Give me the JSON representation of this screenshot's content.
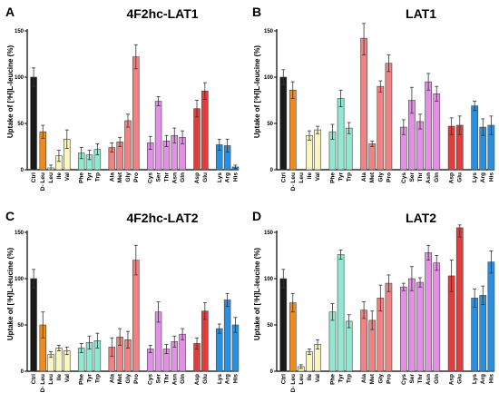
{
  "chart_data": [
    {
      "panel": "A",
      "type": "bar",
      "title": "4F2hc-LAT1",
      "ylabel": "Uptake of [³H]L-leucine (%)",
      "ylim": [
        0,
        150
      ],
      "yticks": [
        0,
        50,
        100,
        150
      ],
      "categories": [
        "Ctrl",
        "D- Leu",
        "Leu",
        "Ile",
        "Val",
        "Phe",
        "Tyr",
        "Trp",
        "Ala",
        "Met",
        "Gly",
        "Pro",
        "Cys",
        "Ser",
        "Thr",
        "Asn",
        "Gln",
        "Asp",
        "Glu",
        "Lys",
        "Arg",
        "His"
      ],
      "values": [
        100,
        41,
        2,
        15,
        33,
        18,
        16,
        22,
        24,
        30,
        53,
        122,
        29,
        74,
        31,
        37,
        35,
        66,
        85,
        27,
        26,
        3
      ],
      "errors": [
        10,
        7,
        3,
        6,
        10,
        6,
        5,
        6,
        5,
        5,
        7,
        13,
        7,
        5,
        6,
        8,
        7,
        9,
        9,
        6,
        7,
        2
      ]
    },
    {
      "panel": "B",
      "type": "bar",
      "title": "LAT1",
      "ylabel": "Uptake of [³H]L-leucine (%)",
      "ylim": [
        0,
        150
      ],
      "yticks": [
        0,
        50,
        100,
        150
      ],
      "categories": [
        "Ctrl",
        "D- Leu",
        "Leu",
        "Ile",
        "Val",
        "Phe",
        "Tyr",
        "Trp",
        "Ala",
        "Met",
        "Gly",
        "Pro",
        "Cys",
        "Ser",
        "Thr",
        "Asn",
        "Gln",
        "Asp",
        "Glu",
        "Lys",
        "Arg",
        "His"
      ],
      "values": [
        100,
        86,
        0,
        37,
        43,
        41,
        77,
        45,
        142,
        28,
        90,
        115,
        46,
        75,
        52,
        95,
        82,
        47,
        48,
        69,
        46,
        48
      ],
      "errors": [
        8,
        9,
        0,
        5,
        4,
        8,
        9,
        6,
        18,
        3,
        6,
        9,
        8,
        14,
        8,
        9,
        8,
        9,
        10,
        5,
        9,
        10
      ]
    },
    {
      "panel": "C",
      "type": "bar",
      "title": "4F2hc-LAT2",
      "ylabel": "Uptake of [³H]L-leucine (%)",
      "ylim": [
        0,
        150
      ],
      "yticks": [
        0,
        50,
        100,
        150
      ],
      "categories": [
        "Ctrl",
        "D- Leu",
        "Leu",
        "Ile",
        "Val",
        "Phe",
        "Tyr",
        "Trp",
        "Ala",
        "Met",
        "Gly",
        "Pro",
        "Cys",
        "Ser",
        "Thr",
        "Asn",
        "Gln",
        "Asp",
        "Glu",
        "Lys",
        "Arg",
        "His"
      ],
      "values": [
        100,
        50,
        18,
        25,
        22,
        25,
        31,
        33,
        26,
        37,
        34,
        120,
        24,
        64,
        24,
        32,
        40,
        30,
        65,
        46,
        77,
        50
      ],
      "errors": [
        10,
        14,
        3,
        3,
        4,
        5,
        7,
        8,
        10,
        9,
        9,
        16,
        4,
        11,
        5,
        6,
        6,
        6,
        9,
        5,
        7,
        8
      ]
    },
    {
      "panel": "D",
      "type": "bar",
      "title": "LAT2",
      "ylabel": "Uptake of [³H]L-leucine (%)",
      "ylim": [
        0,
        150
      ],
      "yticks": [
        0,
        50,
        100,
        150
      ],
      "categories": [
        "Ctrl",
        "D- Leu",
        "Leu",
        "Ile",
        "Val",
        "Phe",
        "Tyr",
        "Trp",
        "Ala",
        "Met",
        "Gly",
        "Pro",
        "Cys",
        "Ser",
        "Thr",
        "Asn",
        "Gln",
        "Asp",
        "Glu",
        "Lys",
        "Arg",
        "His"
      ],
      "values": [
        100,
        74,
        5,
        21,
        29,
        64,
        126,
        54,
        66,
        55,
        79,
        95,
        91,
        100,
        96,
        128,
        117,
        103,
        155,
        79,
        82,
        118
      ],
      "errors": [
        10,
        10,
        2,
        3,
        5,
        9,
        5,
        7,
        9,
        10,
        14,
        9,
        4,
        13,
        5,
        8,
        8,
        17,
        10,
        10,
        10,
        12
      ]
    }
  ],
  "colors": {
    "Ctrl": "#1a1a1a",
    "D- Leu": "#f08a1c",
    "Leu": "#fbf5bf",
    "Ile": "#fbf5bf",
    "Val": "#fbf5bf",
    "Phe": "#8fe8cf",
    "Tyr": "#8fe8cf",
    "Trp": "#8fe8cf",
    "Ala": "#ef8383",
    "Met": "#ef8383",
    "Gly": "#ef8383",
    "Pro": "#ef8383",
    "Cys": "#e48fe6",
    "Ser": "#e48fe6",
    "Thr": "#e48fe6",
    "Asn": "#e48fe6",
    "Gln": "#e48fe6",
    "Asp": "#e23c3c",
    "Glu": "#e23c3c",
    "Lys": "#2b8fe0",
    "Arg": "#2b8fe0",
    "His": "#2b8fe0"
  }
}
